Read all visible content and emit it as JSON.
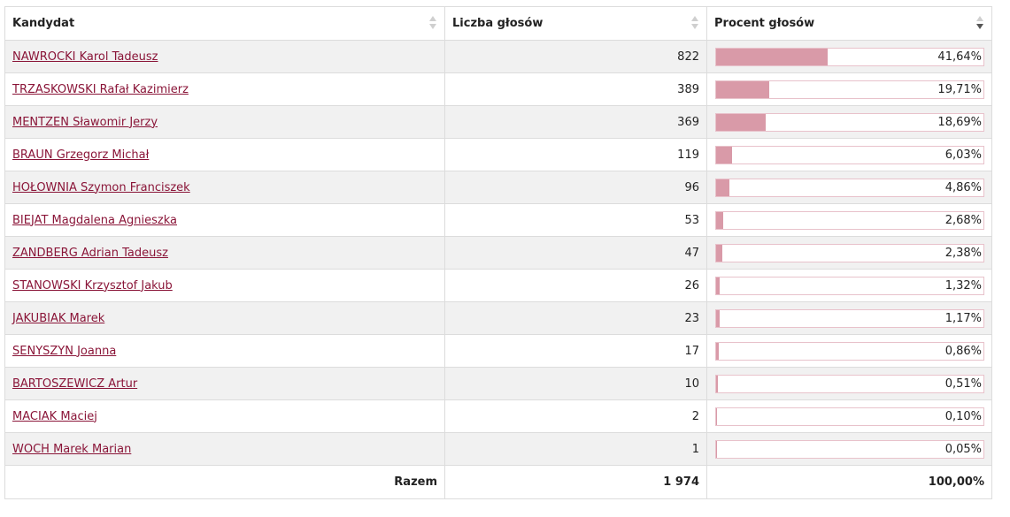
{
  "header": {
    "candidate": "Kandydat",
    "votes": "Liczba głosów",
    "percent": "Procent głosów"
  },
  "rows": [
    {
      "name": "NAWROCKI Karol Tadeusz",
      "votes": "822",
      "percent_label": "41,64%",
      "percent": 41.64
    },
    {
      "name": "TRZASKOWSKI Rafał Kazimierz",
      "votes": "389",
      "percent_label": "19,71%",
      "percent": 19.71
    },
    {
      "name": "MENTZEN Sławomir Jerzy",
      "votes": "369",
      "percent_label": "18,69%",
      "percent": 18.69
    },
    {
      "name": "BRAUN Grzegorz Michał",
      "votes": "119",
      "percent_label": "6,03%",
      "percent": 6.03
    },
    {
      "name": "HOŁOWNIA Szymon Franciszek",
      "votes": "96",
      "percent_label": "4,86%",
      "percent": 4.86
    },
    {
      "name": "BIEJAT Magdalena Agnieszka",
      "votes": "53",
      "percent_label": "2,68%",
      "percent": 2.68
    },
    {
      "name": "ZANDBERG Adrian Tadeusz",
      "votes": "47",
      "percent_label": "2,38%",
      "percent": 2.38
    },
    {
      "name": "STANOWSKI Krzysztof Jakub",
      "votes": "26",
      "percent_label": "1,32%",
      "percent": 1.32
    },
    {
      "name": "JAKUBIAK Marek",
      "votes": "23",
      "percent_label": "1,17%",
      "percent": 1.17
    },
    {
      "name": "SENYSZYN Joanna",
      "votes": "17",
      "percent_label": "0,86%",
      "percent": 0.86
    },
    {
      "name": "BARTOSZEWICZ Artur",
      "votes": "10",
      "percent_label": "0,51%",
      "percent": 0.51
    },
    {
      "name": "MACIAK Maciej",
      "votes": "2",
      "percent_label": "0,10%",
      "percent": 0.1
    },
    {
      "name": "WOCH Marek Marian",
      "votes": "1",
      "percent_label": "0,05%",
      "percent": 0.05
    }
  ],
  "footer": {
    "label": "Razem",
    "votes": "1 974",
    "percent": "100,00%"
  },
  "colors": {
    "link": "#8a1538",
    "bar_fill": "#d99aa8",
    "bar_border": "#e8c2cb",
    "row_alt": "#f1f1f1"
  },
  "sort": {
    "active_column": "percent",
    "direction": "descending"
  }
}
